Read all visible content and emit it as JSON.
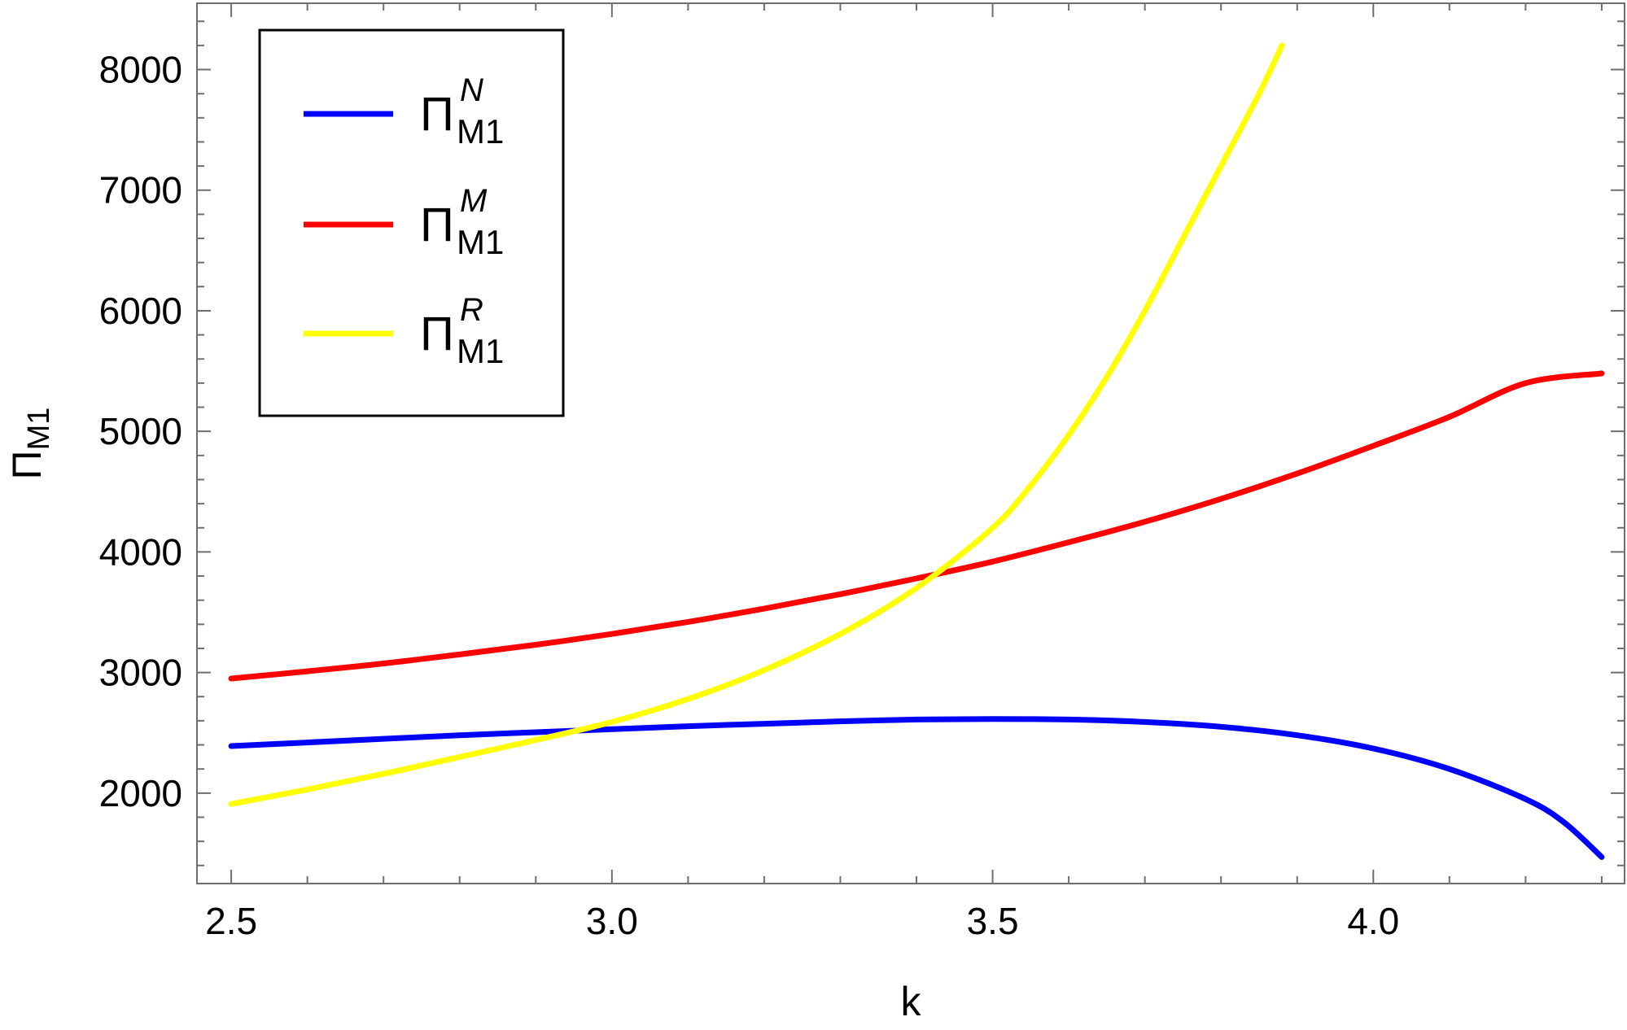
{
  "chart_data": {
    "type": "line",
    "xlabel": "k",
    "ylabel": {
      "main": "Π",
      "sub": "M1"
    },
    "xlim": [
      2.455,
      4.33
    ],
    "ylim": [
      1250,
      8550
    ],
    "x_ticks": [
      2.5,
      3.0,
      3.5,
      4.0
    ],
    "x_tick_labels": [
      "2.5",
      "3.0",
      "3.5",
      "4.0"
    ],
    "x_minor_step": 0.1,
    "y_ticks": [
      2000,
      3000,
      4000,
      5000,
      6000,
      7000,
      8000
    ],
    "y_tick_labels": [
      "2000",
      "3000",
      "4000",
      "5000",
      "6000",
      "7000",
      "8000"
    ],
    "y_minor_step": 200,
    "grid": false,
    "legend_position": "top-left",
    "series": [
      {
        "label_main": "Π",
        "label_sup": "N",
        "label_sub": "M1",
        "color": "#0000ff",
        "points": [
          [
            2.5,
            2390
          ],
          [
            2.6,
            2420
          ],
          [
            2.7,
            2450
          ],
          [
            2.8,
            2480
          ],
          [
            2.9,
            2505
          ],
          [
            3.0,
            2530
          ],
          [
            3.1,
            2555
          ],
          [
            3.2,
            2575
          ],
          [
            3.3,
            2595
          ],
          [
            3.4,
            2610
          ],
          [
            3.5,
            2615
          ],
          [
            3.6,
            2610
          ],
          [
            3.7,
            2590
          ],
          [
            3.8,
            2550
          ],
          [
            3.9,
            2480
          ],
          [
            4.0,
            2370
          ],
          [
            4.1,
            2200
          ],
          [
            4.2,
            1950
          ],
          [
            4.25,
            1760
          ],
          [
            4.3,
            1470
          ]
        ]
      },
      {
        "label_main": "Π",
        "label_sup": "M",
        "label_sub": "M1",
        "color": "#ff0000",
        "points": [
          [
            2.5,
            2950
          ],
          [
            2.6,
            3010
          ],
          [
            2.7,
            3075
          ],
          [
            2.8,
            3150
          ],
          [
            2.9,
            3230
          ],
          [
            3.0,
            3320
          ],
          [
            3.1,
            3420
          ],
          [
            3.2,
            3530
          ],
          [
            3.3,
            3650
          ],
          [
            3.4,
            3780
          ],
          [
            3.5,
            3920
          ],
          [
            3.6,
            4080
          ],
          [
            3.7,
            4250
          ],
          [
            3.8,
            4440
          ],
          [
            3.9,
            4650
          ],
          [
            4.0,
            4880
          ],
          [
            4.1,
            5120
          ],
          [
            4.2,
            5400
          ],
          [
            4.3,
            5480
          ]
        ]
      },
      {
        "label_main": "Π",
        "label_sup": "R",
        "label_sub": "M1",
        "color": "#ffff00",
        "points": [
          [
            2.5,
            1910
          ],
          [
            2.6,
            2030
          ],
          [
            2.7,
            2160
          ],
          [
            2.8,
            2300
          ],
          [
            2.9,
            2440
          ],
          [
            3.0,
            2590
          ],
          [
            3.1,
            2780
          ],
          [
            3.2,
            3020
          ],
          [
            3.3,
            3320
          ],
          [
            3.4,
            3700
          ],
          [
            3.5,
            4200
          ],
          [
            3.55,
            4550
          ],
          [
            3.6,
            4970
          ],
          [
            3.65,
            5450
          ],
          [
            3.7,
            6000
          ],
          [
            3.75,
            6600
          ],
          [
            3.8,
            7200
          ],
          [
            3.85,
            7800
          ],
          [
            3.88,
            8200
          ]
        ]
      }
    ]
  }
}
